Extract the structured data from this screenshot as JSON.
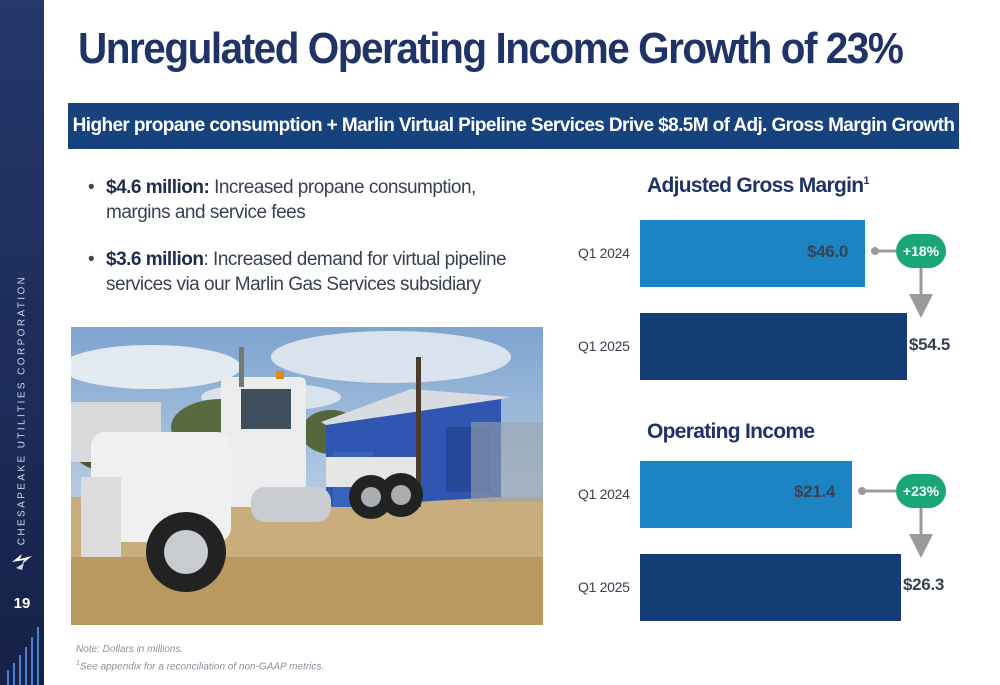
{
  "sidebar": {
    "company": "CHESAPEAKE UTILITIES CORPORATION",
    "page_number": "19"
  },
  "title": "Unregulated Operating Income Growth of 23%",
  "banner": "Higher propane consumption +  Marlin Virtual Pipeline Services Drive $8.5M of Adj. Gross Margin Growth",
  "bullets": [
    {
      "bold": "$4.6 million:",
      "text": " Increased propane consumption, margins and service fees"
    },
    {
      "bold": "$3.6 million",
      "text": ": Increased demand for virtual pipeline services via our Marlin Gas Services subsidiary"
    }
  ],
  "chart_data": [
    {
      "type": "bar",
      "orientation": "horizontal",
      "title": "Adjusted Gross Margin",
      "title_superscript": "1",
      "categories": [
        "Q1 2024",
        "Q1 2025"
      ],
      "values": [
        46.0,
        54.5
      ],
      "labels": [
        "$46.0",
        "$54.5"
      ],
      "growth_label": "+18%",
      "colors": [
        "#1d84c4",
        "#143c75"
      ]
    },
    {
      "type": "bar",
      "orientation": "horizontal",
      "title": "Operating Income",
      "categories": [
        "Q1 2024",
        "Q1 2025"
      ],
      "values": [
        21.4,
        26.3
      ],
      "labels": [
        "$21.4",
        "$26.3"
      ],
      "growth_label": "+23%",
      "colors": [
        "#1d84c4",
        "#143c75"
      ]
    }
  ],
  "footnotes": {
    "note": "Note: Dollars in millions.",
    "ref_mark": "1",
    "ref_text": "See appendix for a reconciliation of non-GAAP metrics."
  },
  "colors": {
    "navy": "#1f3367",
    "banner": "#16427e",
    "bar_2024": "#1d84c4",
    "bar_2025": "#143c75",
    "growth_badge": "#1ba678"
  }
}
